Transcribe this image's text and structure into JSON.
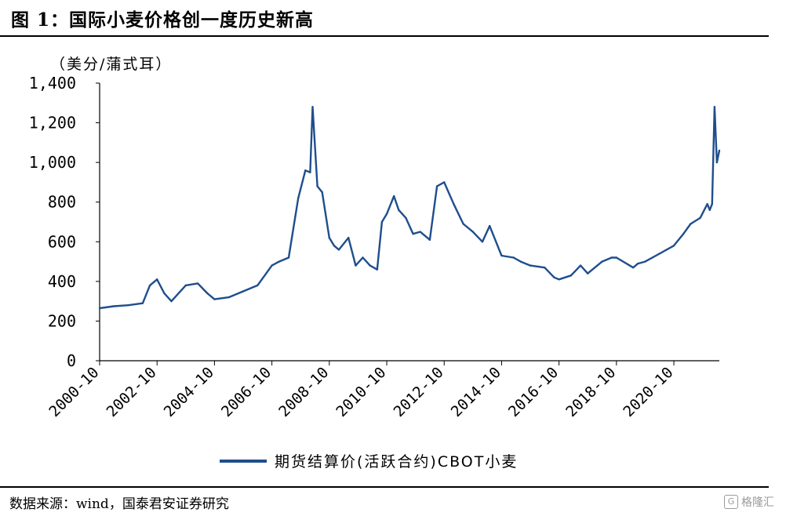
{
  "header": {
    "title": "图 1：国际小麦价格创一度历史新高"
  },
  "source": {
    "text": "数据来源：wind，国泰君安证券研究"
  },
  "watermark": {
    "icon": "logo-icon",
    "text": "格隆汇"
  },
  "colors": {
    "series": "#1F4E8C",
    "axis": "#000000"
  },
  "chart_data": {
    "type": "line",
    "title": "图 1：国际小麦价格创一度历史新高",
    "ylabel": "（美分/蒲式耳）",
    "xlabel": "",
    "ylim": [
      0,
      1400
    ],
    "xlim": [
      "2000-10",
      "2022-05"
    ],
    "yticks": [
      0,
      200,
      400,
      600,
      800,
      1000,
      1200,
      1400
    ],
    "ytick_labels": [
      "0",
      "200",
      "400",
      "600",
      "800",
      "1,000",
      "1,200",
      "1,400"
    ],
    "xtick_labels": [
      "2000-10",
      "2002-10",
      "2004-10",
      "2006-10",
      "2008-10",
      "2010-10",
      "2012-10",
      "2014-10",
      "2016-10",
      "2018-10",
      "2020-10"
    ],
    "grid": false,
    "legend": "bottom",
    "series": [
      {
        "name": "期货结算价(活跃合约)CBOT小麦",
        "x": [
          "2000-10",
          "2001-04",
          "2001-10",
          "2002-04",
          "2002-07",
          "2002-10",
          "2003-01",
          "2003-04",
          "2003-10",
          "2004-03",
          "2004-07",
          "2004-10",
          "2005-04",
          "2005-10",
          "2006-04",
          "2006-10",
          "2007-01",
          "2007-05",
          "2007-09",
          "2007-12",
          "2008-02",
          "2008-03",
          "2008-05",
          "2008-07",
          "2008-10",
          "2008-12",
          "2009-02",
          "2009-06",
          "2009-09",
          "2009-12",
          "2010-03",
          "2010-06",
          "2010-08",
          "2010-10",
          "2011-01",
          "2011-03",
          "2011-06",
          "2011-09",
          "2011-12",
          "2012-04",
          "2012-07",
          "2012-10",
          "2013-02",
          "2013-06",
          "2013-10",
          "2014-02",
          "2014-05",
          "2014-10",
          "2015-03",
          "2015-06",
          "2015-10",
          "2016-04",
          "2016-08",
          "2016-10",
          "2017-03",
          "2017-07",
          "2017-10",
          "2018-04",
          "2018-08",
          "2018-10",
          "2019-05",
          "2019-07",
          "2019-10",
          "2020-04",
          "2020-10",
          "2021-02",
          "2021-05",
          "2021-09",
          "2021-12",
          "2022-01",
          "2022-02",
          "2022-03",
          "2022-04",
          "2022-05"
        ],
        "values": [
          265,
          275,
          280,
          290,
          380,
          410,
          340,
          300,
          380,
          390,
          340,
          310,
          320,
          350,
          380,
          480,
          500,
          520,
          820,
          960,
          950,
          1280,
          880,
          850,
          620,
          580,
          560,
          620,
          480,
          520,
          480,
          460,
          700,
          740,
          830,
          760,
          720,
          640,
          650,
          610,
          880,
          900,
          790,
          690,
          650,
          600,
          680,
          530,
          520,
          500,
          480,
          470,
          420,
          410,
          430,
          480,
          440,
          500,
          520,
          520,
          470,
          490,
          500,
          540,
          580,
          640,
          690,
          720,
          790,
          760,
          790,
          1280,
          1000,
          1060
        ]
      }
    ]
  }
}
